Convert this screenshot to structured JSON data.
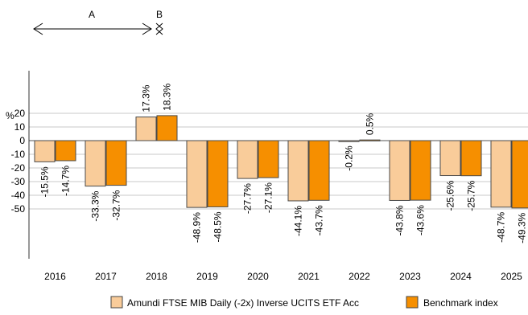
{
  "chart_data": {
    "type": "bar",
    "categories": [
      "2016",
      "2017",
      "2018",
      "2019",
      "2020",
      "2021",
      "2022",
      "2023",
      "2024",
      "2025"
    ],
    "series": [
      {
        "name": "Amundi FTSE MIB Daily (-2x) Inverse UCITS ETF Acc",
        "color": "#f9cc9a",
        "values": [
          -15.5,
          -33.3,
          17.3,
          -48.9,
          -27.7,
          -44.1,
          -0.2,
          -43.8,
          -25.6,
          -48.7
        ],
        "labels": [
          "-15.5%",
          "-33.3%",
          "17.3%",
          "-48.9%",
          "-27.7%",
          "-44.1%",
          "-0.2%",
          "-43.8%",
          "-25.6%",
          "-48.7%"
        ]
      },
      {
        "name": "Benchmark index",
        "color": "#f68f00",
        "values": [
          -14.7,
          -32.7,
          18.3,
          -48.5,
          -27.1,
          -43.7,
          0.5,
          -43.6,
          -25.7,
          -49.3
        ],
        "labels": [
          "-14.7%",
          "-32.7%",
          "18.3%",
          "-48.5%",
          "-27.1%",
          "-43.7%",
          "0.5%",
          "-43.6%",
          "-25.7%",
          "-49.3%"
        ]
      }
    ],
    "yticks": [
      "20",
      "10",
      "0",
      "-10",
      "-20",
      "-30",
      "-40",
      "-50"
    ],
    "ytick_values": [
      20,
      10,
      0,
      -10,
      -20,
      -30,
      -40,
      -50
    ],
    "ylabel": "%",
    "ylim": [
      -50,
      20
    ],
    "grid": true,
    "legend": "bottom-right",
    "markers": {
      "a_label": "A",
      "b_label": "B"
    }
  }
}
